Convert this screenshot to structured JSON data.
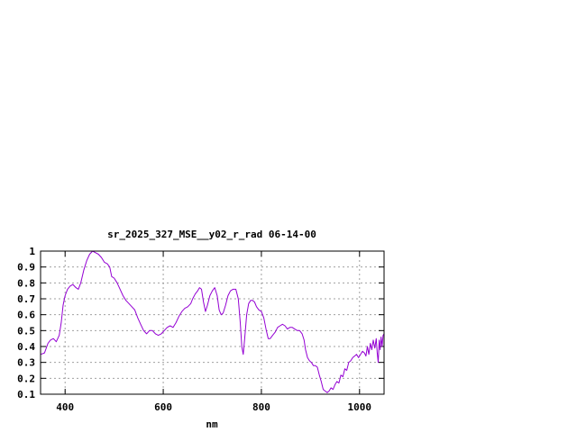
{
  "chart_data": {
    "type": "line",
    "title": "sr_2025_327_MSE__y02_r_rad 06-14-00",
    "xlabel": "nm",
    "ylabel": "",
    "xlim": [
      350,
      1050
    ],
    "ylim": [
      0.1,
      1
    ],
    "x_ticks": [
      "400",
      "600",
      "800",
      "1000"
    ],
    "x_tick_values": [
      400,
      600,
      800,
      1000
    ],
    "y_ticks": [
      "0.1",
      "0.2",
      "0.3",
      "0.4",
      "0.5",
      "0.6",
      "0.7",
      "0.8",
      "0.9",
      "1"
    ],
    "y_tick_values": [
      0.1,
      0.2,
      0.3,
      0.4,
      0.5,
      0.6,
      0.7,
      0.8,
      0.9,
      1.0
    ],
    "grid": true,
    "legend": "none",
    "series": [
      {
        "color": "#9400d3",
        "points": [
          [
            350,
            0.35
          ],
          [
            358,
            0.36
          ],
          [
            365,
            0.42
          ],
          [
            370,
            0.44
          ],
          [
            376,
            0.45
          ],
          [
            382,
            0.43
          ],
          [
            388,
            0.47
          ],
          [
            392,
            0.55
          ],
          [
            396,
            0.66
          ],
          [
            400,
            0.72
          ],
          [
            405,
            0.76
          ],
          [
            410,
            0.78
          ],
          [
            416,
            0.79
          ],
          [
            422,
            0.77
          ],
          [
            427,
            0.76
          ],
          [
            432,
            0.8
          ],
          [
            438,
            0.88
          ],
          [
            444,
            0.94
          ],
          [
            450,
            0.98
          ],
          [
            456,
            1.0
          ],
          [
            462,
            0.99
          ],
          [
            468,
            0.98
          ],
          [
            474,
            0.96
          ],
          [
            480,
            0.93
          ],
          [
            486,
            0.92
          ],
          [
            491,
            0.9
          ],
          [
            495,
            0.84
          ],
          [
            500,
            0.83
          ],
          [
            506,
            0.8
          ],
          [
            512,
            0.76
          ],
          [
            518,
            0.72
          ],
          [
            524,
            0.69
          ],
          [
            530,
            0.67
          ],
          [
            536,
            0.65
          ],
          [
            542,
            0.63
          ],
          [
            548,
            0.58
          ],
          [
            554,
            0.54
          ],
          [
            560,
            0.5
          ],
          [
            566,
            0.48
          ],
          [
            572,
            0.5
          ],
          [
            578,
            0.5
          ],
          [
            584,
            0.48
          ],
          [
            590,
            0.47
          ],
          [
            596,
            0.48
          ],
          [
            602,
            0.5
          ],
          [
            608,
            0.52
          ],
          [
            614,
            0.53
          ],
          [
            620,
            0.52
          ],
          [
            626,
            0.55
          ],
          [
            632,
            0.59
          ],
          [
            638,
            0.62
          ],
          [
            644,
            0.64
          ],
          [
            650,
            0.65
          ],
          [
            656,
            0.67
          ],
          [
            660,
            0.7
          ],
          [
            665,
            0.73
          ],
          [
            670,
            0.75
          ],
          [
            674,
            0.77
          ],
          [
            678,
            0.76
          ],
          [
            682,
            0.68
          ],
          [
            686,
            0.62
          ],
          [
            690,
            0.66
          ],
          [
            695,
            0.72
          ],
          [
            700,
            0.75
          ],
          [
            705,
            0.77
          ],
          [
            710,
            0.72
          ],
          [
            714,
            0.63
          ],
          [
            718,
            0.6
          ],
          [
            722,
            0.61
          ],
          [
            727,
            0.66
          ],
          [
            732,
            0.72
          ],
          [
            737,
            0.75
          ],
          [
            742,
            0.76
          ],
          [
            748,
            0.76
          ],
          [
            753,
            0.7
          ],
          [
            757,
            0.55
          ],
          [
            760,
            0.4
          ],
          [
            763,
            0.35
          ],
          [
            766,
            0.45
          ],
          [
            770,
            0.6
          ],
          [
            774,
            0.67
          ],
          [
            778,
            0.69
          ],
          [
            782,
            0.69
          ],
          [
            786,
            0.68
          ],
          [
            790,
            0.65
          ],
          [
            795,
            0.63
          ],
          [
            800,
            0.62
          ],
          [
            805,
            0.58
          ],
          [
            810,
            0.5
          ],
          [
            814,
            0.45
          ],
          [
            818,
            0.45
          ],
          [
            823,
            0.47
          ],
          [
            828,
            0.49
          ],
          [
            833,
            0.52
          ],
          [
            838,
            0.53
          ],
          [
            843,
            0.54
          ],
          [
            848,
            0.53
          ],
          [
            853,
            0.51
          ],
          [
            858,
            0.52
          ],
          [
            863,
            0.52
          ],
          [
            868,
            0.51
          ],
          [
            873,
            0.5
          ],
          [
            878,
            0.5
          ],
          [
            883,
            0.48
          ],
          [
            887,
            0.44
          ],
          [
            890,
            0.38
          ],
          [
            894,
            0.33
          ],
          [
            898,
            0.31
          ],
          [
            902,
            0.3
          ],
          [
            906,
            0.28
          ],
          [
            910,
            0.28
          ],
          [
            914,
            0.27
          ],
          [
            918,
            0.22
          ],
          [
            922,
            0.18
          ],
          [
            926,
            0.13
          ],
          [
            930,
            0.12
          ],
          [
            934,
            0.11
          ],
          [
            938,
            0.12
          ],
          [
            942,
            0.14
          ],
          [
            946,
            0.13
          ],
          [
            950,
            0.16
          ],
          [
            954,
            0.18
          ],
          [
            958,
            0.17
          ],
          [
            962,
            0.22
          ],
          [
            966,
            0.21
          ],
          [
            970,
            0.26
          ],
          [
            974,
            0.25
          ],
          [
            978,
            0.3
          ],
          [
            982,
            0.31
          ],
          [
            986,
            0.33
          ],
          [
            990,
            0.34
          ],
          [
            994,
            0.35
          ],
          [
            998,
            0.33
          ],
          [
            1002,
            0.35
          ],
          [
            1006,
            0.37
          ],
          [
            1010,
            0.36
          ],
          [
            1013,
            0.34
          ],
          [
            1016,
            0.4
          ],
          [
            1019,
            0.35
          ],
          [
            1022,
            0.42
          ],
          [
            1025,
            0.38
          ],
          [
            1028,
            0.44
          ],
          [
            1031,
            0.39
          ],
          [
            1034,
            0.45
          ],
          [
            1036,
            0.36
          ],
          [
            1038,
            0.3
          ],
          [
            1040,
            0.44
          ],
          [
            1042,
            0.38
          ],
          [
            1044,
            0.46
          ],
          [
            1046,
            0.4
          ],
          [
            1048,
            0.47
          ],
          [
            1050,
            0.48
          ]
        ]
      }
    ]
  }
}
